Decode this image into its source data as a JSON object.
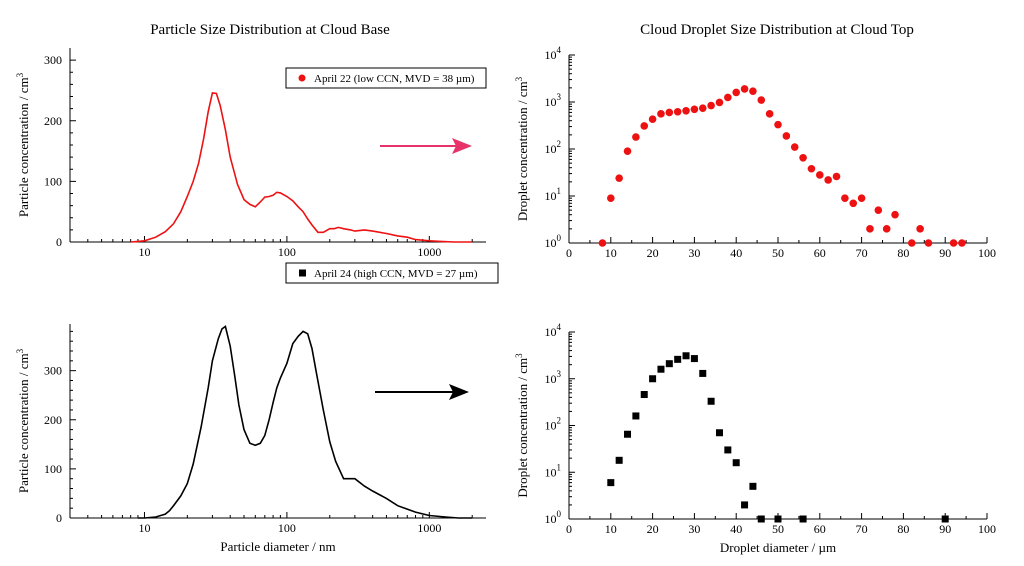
{
  "titles": {
    "left": "Particle Size Distribution at Cloud Base",
    "right": "Cloud Droplet Size Distribution at Cloud Top"
  },
  "colors": {
    "red": "#ee1111",
    "arrow_red": "#e8336a",
    "black": "#000000"
  },
  "chart_data": [
    {
      "id": "apr22-particles",
      "type": "line",
      "panel_title": "Particle Size Distribution at Cloud Base",
      "xscale": "log",
      "xlim": [
        3,
        2500
      ],
      "ylim": [
        0,
        320
      ],
      "xticks": [
        10,
        100,
        1000
      ],
      "yticks": [
        0,
        100,
        200,
        300
      ],
      "xlabel": "",
      "ylabel": "Particle concentration / cm",
      "ylabel_sup": "3",
      "legend": "April 22 (low CCN, MVD = 38 µm)",
      "legend_position": "top-right",
      "color": "#ee1111",
      "x": [
        8,
        9,
        10,
        12,
        14,
        16,
        18,
        20,
        22,
        24,
        26,
        28,
        30,
        32,
        34,
        37,
        40,
        45,
        50,
        55,
        60,
        65,
        70,
        75,
        80,
        85,
        90,
        100,
        110,
        120,
        130,
        140,
        150,
        165,
        180,
        200,
        215,
        230,
        250,
        280,
        300,
        350,
        400,
        500,
        600,
        700,
        800,
        1000,
        1200,
        1500,
        2000
      ],
      "y": [
        0,
        1,
        2,
        8,
        17,
        30,
        50,
        75,
        100,
        130,
        170,
        215,
        246,
        245,
        225,
        185,
        140,
        95,
        70,
        62,
        58,
        66,
        74,
        75,
        77,
        82,
        81,
        75,
        68,
        58,
        50,
        38,
        28,
        16,
        16,
        22,
        22,
        24,
        22,
        20,
        18,
        20,
        18,
        14,
        10,
        8,
        4,
        2,
        1,
        0,
        0
      ]
    },
    {
      "id": "apr24-particles",
      "type": "line",
      "xscale": "log",
      "xlim": [
        3,
        2500
      ],
      "ylim": [
        0,
        395
      ],
      "xticks": [
        10,
        100,
        1000
      ],
      "yticks": [
        0,
        100,
        200,
        300
      ],
      "xlabel": "Particle diameter / nm",
      "ylabel": "Particle concentration / cm",
      "ylabel_sup": "3",
      "legend": "April 24 (high CCN, MVD = 27 µm)",
      "legend_position": "top-right",
      "color": "#000000",
      "x": [
        9,
        10,
        12,
        14,
        15,
        16,
        18,
        20,
        22,
        25,
        28,
        30,
        33,
        35,
        37,
        40,
        43,
        46,
        50,
        55,
        60,
        65,
        70,
        75,
        80,
        85,
        90,
        100,
        110,
        120,
        130,
        140,
        150,
        160,
        180,
        200,
        220,
        250,
        300,
        350,
        400,
        500,
        600,
        800,
        1000,
        1300,
        1600,
        2000
      ],
      "y": [
        0,
        0,
        2,
        8,
        15,
        25,
        45,
        70,
        110,
        185,
        265,
        320,
        365,
        385,
        390,
        350,
        290,
        230,
        180,
        152,
        148,
        152,
        168,
        200,
        235,
        265,
        285,
        315,
        355,
        370,
        380,
        375,
        345,
        300,
        220,
        155,
        115,
        80,
        80,
        65,
        55,
        40,
        25,
        12,
        5,
        2,
        0,
        0
      ]
    },
    {
      "id": "apr22-droplets",
      "type": "scatter",
      "panel_title": "Cloud Droplet Size Distribution at Cloud Top",
      "yscale": "log",
      "xlim": [
        0,
        100
      ],
      "ylim": [
        1,
        10000
      ],
      "xticks": [
        0,
        10,
        20,
        30,
        40,
        50,
        60,
        70,
        80,
        90,
        100
      ],
      "xlabel": "",
      "ylabel": "Droplet concentration / cm",
      "ylabel_sup": "3",
      "marker": "circle",
      "color": "#ee1111",
      "x": [
        8,
        10,
        12,
        14,
        16,
        18,
        20,
        22,
        24,
        26,
        28,
        30,
        32,
        34,
        36,
        38,
        40,
        42,
        44,
        46,
        48,
        50,
        52,
        54,
        56,
        58,
        60,
        62,
        64,
        66,
        68,
        70,
        72,
        74,
        76,
        78,
        82,
        84,
        86,
        92,
        94
      ],
      "y": [
        1,
        9,
        24,
        90,
        180,
        310,
        430,
        560,
        600,
        620,
        650,
        700,
        740,
        840,
        980,
        1250,
        1600,
        1900,
        1700,
        1100,
        560,
        330,
        190,
        110,
        65,
        38,
        28,
        22,
        26,
        9,
        7,
        9,
        2,
        5,
        2,
        4,
        1,
        2,
        1,
        1,
        1
      ]
    },
    {
      "id": "apr24-droplets",
      "type": "scatter",
      "yscale": "log",
      "xlim": [
        0,
        100
      ],
      "ylim": [
        1,
        10000
      ],
      "xticks": [
        0,
        10,
        20,
        30,
        40,
        50,
        60,
        70,
        80,
        90,
        100
      ],
      "xlabel": "Droplet diameter / µm",
      "ylabel": "Droplet concentration / cm",
      "ylabel_sup": "3",
      "marker": "square",
      "color": "#000000",
      "x": [
        10,
        12,
        14,
        16,
        18,
        20,
        22,
        24,
        26,
        28,
        30,
        32,
        34,
        36,
        38,
        40,
        42,
        44,
        46,
        50,
        56,
        90
      ],
      "y": [
        6,
        18,
        65,
        160,
        460,
        1000,
        1600,
        2100,
        2600,
        3100,
        2700,
        1300,
        330,
        70,
        30,
        16,
        2,
        5,
        1,
        1,
        1,
        1
      ]
    }
  ]
}
